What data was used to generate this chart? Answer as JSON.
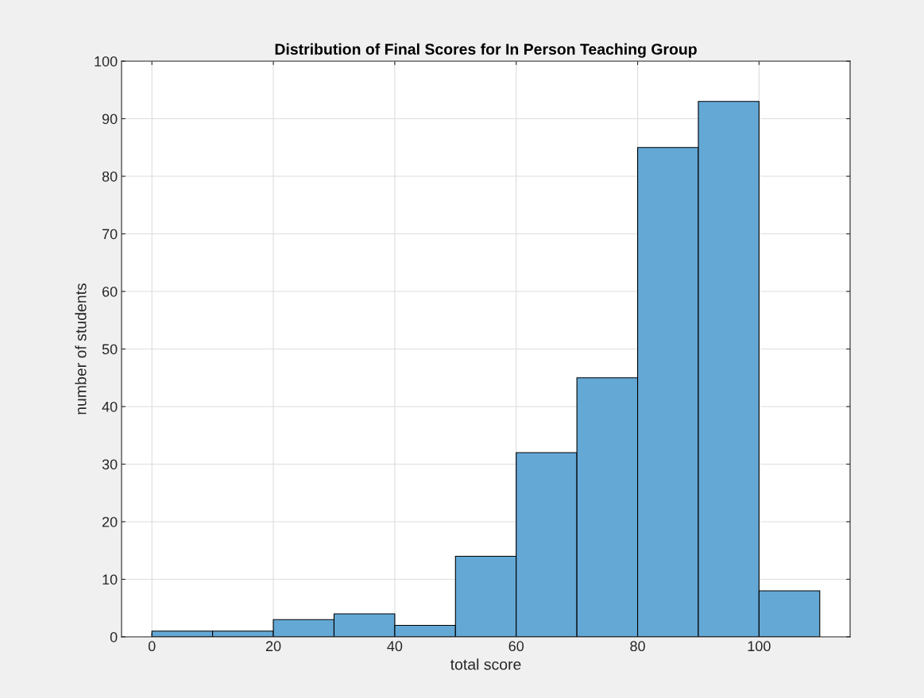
{
  "chart_data": {
    "type": "histogram",
    "title": "Distribution of Final Scores for In Person Teaching Group",
    "xlabel": "total score",
    "ylabel": "number of students",
    "bins": [
      0,
      10,
      20,
      30,
      40,
      50,
      60,
      70,
      80,
      90,
      100,
      110
    ],
    "values": [
      1,
      1,
      3,
      4,
      2,
      14,
      32,
      45,
      85,
      93,
      8
    ],
    "color": "#64a8d6",
    "xlim": [
      -5,
      115
    ],
    "xticks": [
      0,
      20,
      40,
      60,
      80,
      100
    ],
    "ylim": [
      0,
      100
    ],
    "yticks": [
      0,
      10,
      20,
      30,
      40,
      50,
      60,
      70,
      80,
      90,
      100
    ],
    "grid": true
  }
}
